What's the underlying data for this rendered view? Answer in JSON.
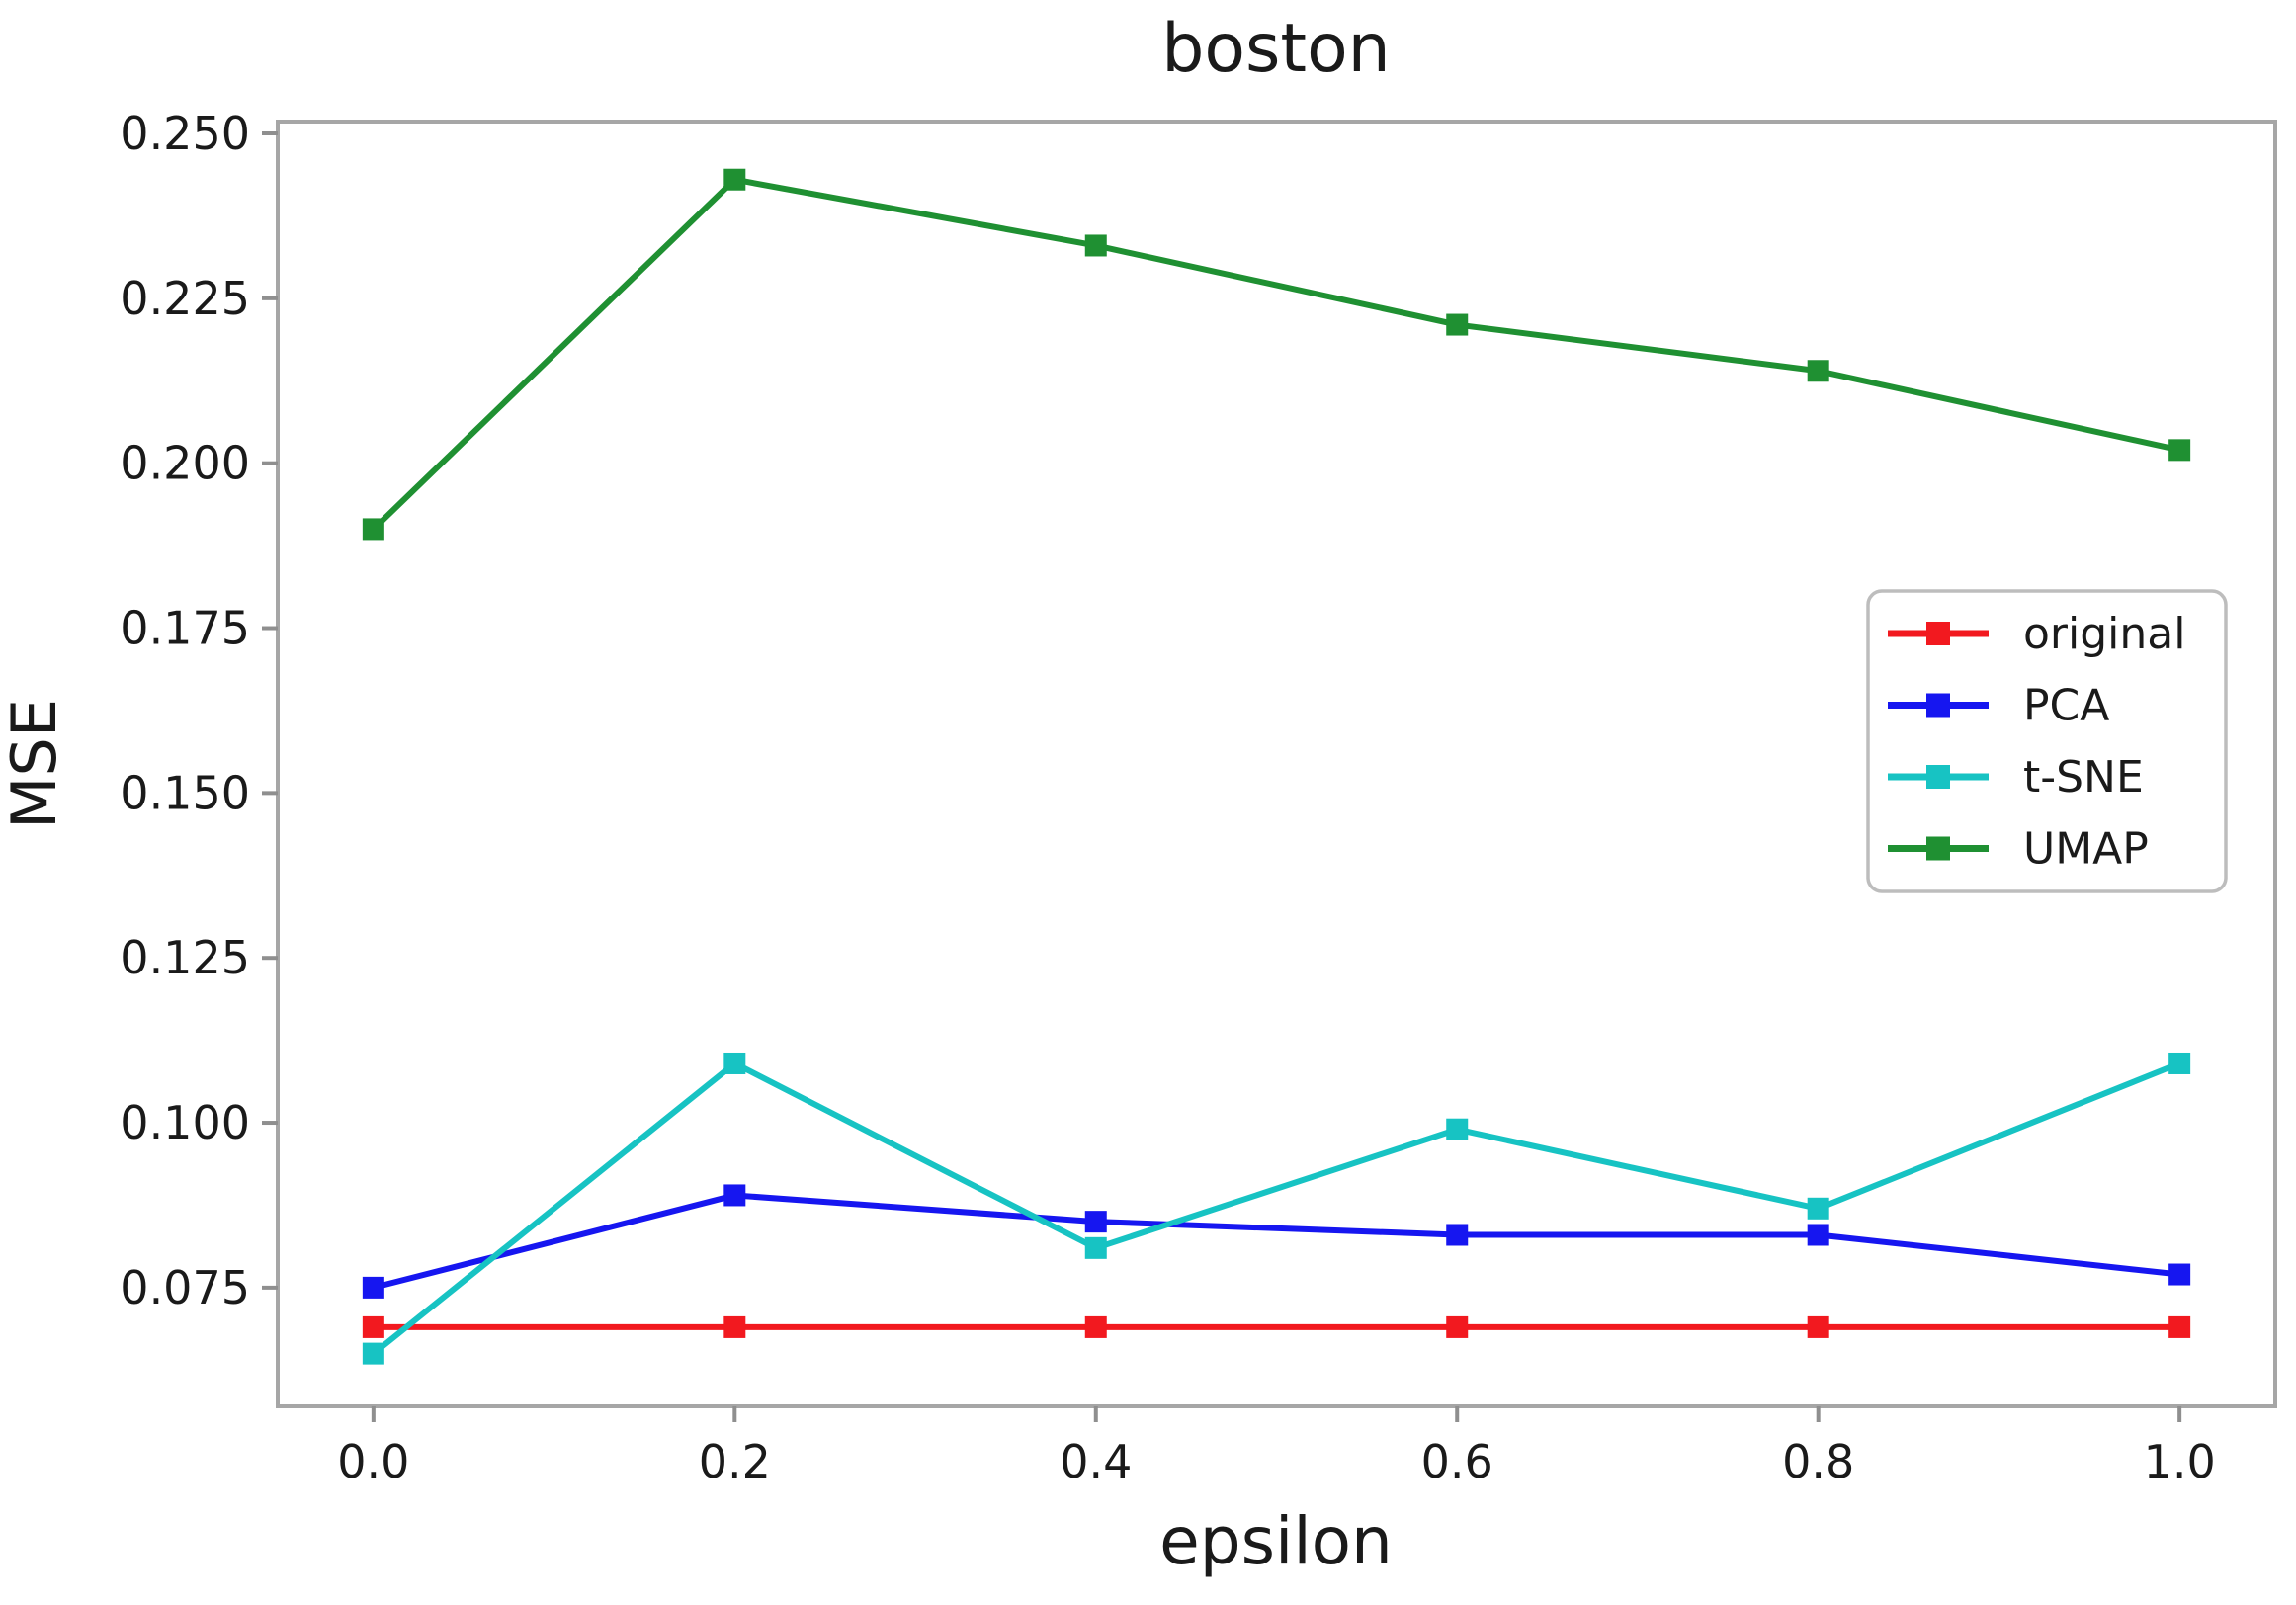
{
  "figure": {
    "background": "#ffffff"
  },
  "chart_data": {
    "type": "line",
    "title": "boston",
    "xlabel": "epsilon",
    "ylabel": "MSE",
    "x": [
      0.0,
      0.2,
      0.4,
      0.6,
      0.8,
      1.0
    ],
    "x_tick_labels": [
      "0.0",
      "0.2",
      "0.4",
      "0.6",
      "0.8",
      "1.0"
    ],
    "y_ticks": [
      0.075,
      0.1,
      0.125,
      0.15,
      0.175,
      0.2,
      0.225,
      0.25
    ],
    "y_tick_labels": [
      "0.075",
      "0.100",
      "0.125",
      "0.150",
      "0.175",
      "0.200",
      "0.225",
      "0.250"
    ],
    "xlim": [
      -0.053,
      1.053
    ],
    "ylim": [
      0.057,
      0.2518
    ],
    "grid": false,
    "legend": {
      "position": "center-right",
      "entries": [
        "original",
        "PCA",
        "t-SNE",
        "UMAP"
      ]
    },
    "series": [
      {
        "name": "original",
        "color": "#f2191f",
        "marker": "square",
        "values": [
          0.069,
          0.069,
          0.069,
          0.069,
          0.069,
          0.069
        ]
      },
      {
        "name": "PCA",
        "color": "#1616f0",
        "marker": "square",
        "values": [
          0.075,
          0.089,
          0.085,
          0.083,
          0.083,
          0.077
        ]
      },
      {
        "name": "t-SNE",
        "color": "#17c3c3",
        "marker": "square",
        "values": [
          0.065,
          0.109,
          0.081,
          0.099,
          0.087,
          0.109
        ]
      },
      {
        "name": "UMAP",
        "color": "#1f9032",
        "marker": "square",
        "values": [
          0.19,
          0.243,
          0.233,
          0.221,
          0.214,
          0.202
        ]
      }
    ]
  },
  "style": {
    "spine_color": "#a6a6a6",
    "tick_color": "#8f8f8f",
    "text_color": "#1a1a1a",
    "legend_border_color": "#bdbdbd",
    "legend_background": "#ffffff"
  }
}
